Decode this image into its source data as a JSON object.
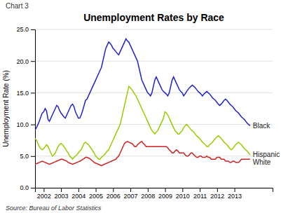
{
  "chart_data": {
    "type": "line",
    "title": "Unemployment Rates by Race",
    "ylabel": "Unemployment Rate (%)",
    "annotations": [
      "Chart 3",
      "Source: Bureau of Labor Statistics"
    ],
    "x": [
      2001.5,
      2001.5832,
      2001.6664,
      2001.7497,
      2001.8329,
      2001.9161,
      2001.9993,
      2002.0826,
      2002.1658,
      2002.249,
      2002.3322,
      2002.4154,
      2002.4987,
      2002.5819,
      2002.6651,
      2002.7483,
      2002.8315,
      2002.9148,
      2002.998,
      2003.0812,
      2003.1644,
      2003.2477,
      2003.3309,
      2003.4141,
      2003.4973,
      2003.5805,
      2003.6638,
      2003.747,
      2003.8302,
      2003.9134,
      2003.9966,
      2004.0799,
      2004.1631,
      2004.2463,
      2004.3295,
      2004.4128,
      2004.496,
      2004.5792,
      2004.6624,
      2004.7456,
      2004.8289,
      2004.9121,
      2004.9953,
      2005.0785,
      2005.1617,
      2005.245,
      2005.3282,
      2005.4114,
      2005.4946,
      2005.5779,
      2005.6611,
      2005.7443,
      2005.8275,
      2005.9107,
      2005.994,
      2006.0772,
      2006.1604,
      2006.2436,
      2006.3268,
      2006.4101,
      2006.4933,
      2006.5765,
      2006.6597,
      2006.743,
      2006.8262,
      2006.9094,
      2006.9926,
      2007.0758,
      2007.1591,
      2007.2423,
      2007.3255,
      2007.4087,
      2007.4919,
      2007.5752,
      2007.6584,
      2007.7416,
      2007.8248,
      2007.9081,
      2007.9913,
      2008.0745,
      2008.1577,
      2008.2409,
      2008.3242,
      2008.4074,
      2008.4906,
      2008.5738,
      2008.657,
      2008.7403,
      2008.8235,
      2008.9067,
      2008.9899,
      2009.0732,
      2009.1564,
      2009.2396,
      2009.3228,
      2009.406,
      2009.4893,
      2009.5725,
      2009.6557,
      2009.7389,
      2009.8221,
      2009.9054,
      2009.9886,
      2010.0718,
      2010.155,
      2010.2383,
      2010.3215,
      2010.4047,
      2010.4879,
      2010.5711,
      2010.6544,
      2010.7376,
      2010.8208,
      2010.904,
      2010.9872,
      2011.0705,
      2011.1537,
      2011.2369,
      2011.3201,
      2011.4034,
      2011.4866,
      2011.5698,
      2011.653,
      2011.7362,
      2011.8195,
      2011.9027,
      2011.9859,
      2012.0691,
      2012.1523,
      2012.2356,
      2012.3188,
      2012.402,
      2012.4852,
      2012.5685,
      2012.6517,
      2012.7349,
      2012.8181,
      2012.9013,
      2012.9846,
      2013.0678,
      2013.151,
      2013.2342,
      2013.3174,
      2013.4007,
      2013.4839,
      2013.5671,
      2013.6503,
      2013.7336,
      2013.8168,
      2013.9
    ],
    "series": [
      {
        "name": "Black",
        "color": "#2222cc",
        "values": [
          9.1,
          9.5,
          10.0,
          10.5,
          11.2,
          11.8,
          12.0,
          12.5,
          12.1,
          10.8,
          10.5,
          11.0,
          11.5,
          12.0,
          12.5,
          13.0,
          12.8,
          12.2,
          11.8,
          11.5,
          11.2,
          11.0,
          11.5,
          12.0,
          12.5,
          13.0,
          13.2,
          12.8,
          12.0,
          11.5,
          11.0,
          11.0,
          11.5,
          12.2,
          13.0,
          13.8,
          14.0,
          14.5,
          15.0,
          15.5,
          16.0,
          16.5,
          17.0,
          17.5,
          18.0,
          18.5,
          19.0,
          20.0,
          21.0,
          22.0,
          22.5,
          23.0,
          22.8,
          22.5,
          22.0,
          21.8,
          21.5,
          21.2,
          21.0,
          21.5,
          22.0,
          22.5,
          23.0,
          23.5,
          23.2,
          23.0,
          22.5,
          22.0,
          21.5,
          21.0,
          20.5,
          20.0,
          19.0,
          18.0,
          17.0,
          16.5,
          16.0,
          15.5,
          15.0,
          14.8,
          14.5,
          15.0,
          16.0,
          17.0,
          17.5,
          17.0,
          16.5,
          16.0,
          15.5,
          15.2,
          15.0,
          14.8,
          14.5,
          15.0,
          16.0,
          17.0,
          17.5,
          17.0,
          16.5,
          16.0,
          15.5,
          15.2,
          15.0,
          14.5,
          14.8,
          15.2,
          15.5,
          15.8,
          16.0,
          16.2,
          16.0,
          15.8,
          15.5,
          15.2,
          15.0,
          14.8,
          14.5,
          14.8,
          15.0,
          15.2,
          15.0,
          14.8,
          14.5,
          14.2,
          14.0,
          13.8,
          13.5,
          13.2,
          13.0,
          13.2,
          13.5,
          13.8,
          14.0,
          13.8,
          13.5,
          13.2,
          13.0,
          12.8,
          12.5,
          12.2,
          12.0,
          11.8,
          11.5,
          11.2,
          11.0,
          10.8,
          10.5,
          10.2,
          10.0,
          9.8
        ]
      },
      {
        "name": "Hispanic",
        "color": "#99cc00",
        "values": [
          7.8,
          7.5,
          7.0,
          6.5,
          6.2,
          6.0,
          6.2,
          6.5,
          6.8,
          6.5,
          6.0,
          5.5,
          5.0,
          5.2,
          5.5,
          6.0,
          6.5,
          6.8,
          7.0,
          6.8,
          6.5,
          6.2,
          5.8,
          5.5,
          5.0,
          4.8,
          4.5,
          4.8,
          5.0,
          5.2,
          5.5,
          5.8,
          6.0,
          6.5,
          7.0,
          7.2,
          7.0,
          6.8,
          6.5,
          6.2,
          5.8,
          5.5,
          5.0,
          4.8,
          4.5,
          4.5,
          4.8,
          5.0,
          5.2,
          5.5,
          5.8,
          6.0,
          6.5,
          7.0,
          7.5,
          8.0,
          8.5,
          9.0,
          9.5,
          10.0,
          11.0,
          12.0,
          13.0,
          14.0,
          15.0,
          16.0,
          15.8,
          15.5,
          15.2,
          14.8,
          14.5,
          14.0,
          13.5,
          13.0,
          12.5,
          12.0,
          11.5,
          11.0,
          10.5,
          10.0,
          9.5,
          9.0,
          8.8,
          8.5,
          8.8,
          9.0,
          9.5,
          10.0,
          10.5,
          11.0,
          12.0,
          11.8,
          11.5,
          11.0,
          10.5,
          10.0,
          9.5,
          9.0,
          8.8,
          8.5,
          8.5,
          8.8,
          9.0,
          9.5,
          9.8,
          10.0,
          9.8,
          9.5,
          9.2,
          9.0,
          8.8,
          8.5,
          8.2,
          8.0,
          7.8,
          7.5,
          7.2,
          7.0,
          6.8,
          6.5,
          6.5,
          6.8,
          7.0,
          7.2,
          7.5,
          7.8,
          8.0,
          8.2,
          8.0,
          7.8,
          7.5,
          7.2,
          7.0,
          6.8,
          6.5,
          6.2,
          6.0,
          6.2,
          6.5,
          6.8,
          7.0,
          7.2,
          7.0,
          6.8,
          6.5,
          6.2,
          6.0,
          5.8,
          5.5,
          5.2
        ]
      },
      {
        "name": "White",
        "color": "#cc2222",
        "values": [
          3.7,
          3.8,
          3.9,
          4.0,
          4.1,
          4.2,
          4.1,
          4.0,
          3.9,
          3.8,
          3.7,
          3.8,
          3.9,
          4.0,
          4.1,
          4.2,
          4.3,
          4.4,
          4.5,
          4.5,
          4.4,
          4.3,
          4.2,
          4.0,
          3.9,
          3.8,
          3.7,
          3.8,
          3.9,
          4.0,
          4.1,
          4.2,
          4.3,
          4.5,
          4.6,
          4.8,
          4.8,
          4.7,
          4.6,
          4.4,
          4.2,
          4.0,
          3.9,
          3.8,
          3.7,
          3.6,
          3.5,
          3.6,
          3.7,
          3.8,
          3.9,
          4.0,
          4.1,
          4.2,
          4.3,
          4.4,
          4.5,
          4.8,
          5.0,
          5.5,
          6.0,
          6.5,
          7.0,
          7.2,
          7.3,
          7.2,
          7.1,
          7.0,
          6.8,
          6.5,
          6.5,
          6.8,
          7.0,
          7.2,
          7.3,
          7.0,
          6.8,
          6.5,
          6.5,
          6.5,
          6.5,
          6.5,
          6.5,
          6.5,
          6.5,
          6.5,
          6.5,
          6.5,
          6.5,
          6.5,
          6.5,
          6.5,
          6.3,
          6.0,
          5.8,
          5.5,
          5.5,
          5.8,
          6.0,
          5.8,
          5.5,
          5.5,
          5.5,
          5.5,
          5.2,
          5.0,
          5.0,
          5.2,
          5.5,
          5.5,
          5.2,
          5.0,
          4.8,
          4.8,
          5.0,
          5.0,
          4.8,
          4.8,
          4.8,
          5.0,
          4.8,
          4.8,
          4.5,
          4.5,
          4.5,
          4.5,
          4.8,
          4.8,
          4.8,
          4.5,
          4.5,
          4.5,
          4.2,
          4.2,
          4.2,
          4.0,
          4.0,
          4.2,
          4.2,
          4.0,
          4.0,
          4.0,
          4.2,
          4.5,
          4.5,
          4.5,
          4.5,
          4.5,
          4.5,
          4.5
        ]
      }
    ],
    "xlim": [
      2001.5,
      2015.2
    ],
    "xticks": [
      2002,
      2003,
      2004,
      2005,
      2006,
      2007,
      2008,
      2009,
      2010,
      2011,
      2012,
      2013
    ],
    "ylim": [
      0.0,
      25.0
    ],
    "yticks": [
      {
        "value": 0.0,
        "label": "0.0"
      },
      {
        "value": 5.0,
        "label": "5.0"
      },
      {
        "value": 10.0,
        "label": "10.0"
      },
      {
        "value": 15.0,
        "label": "15.0"
      },
      {
        "value": 20.0,
        "label": "20.0"
      },
      {
        "value": 25.0,
        "label": "25.0"
      }
    ],
    "grid": true
  }
}
